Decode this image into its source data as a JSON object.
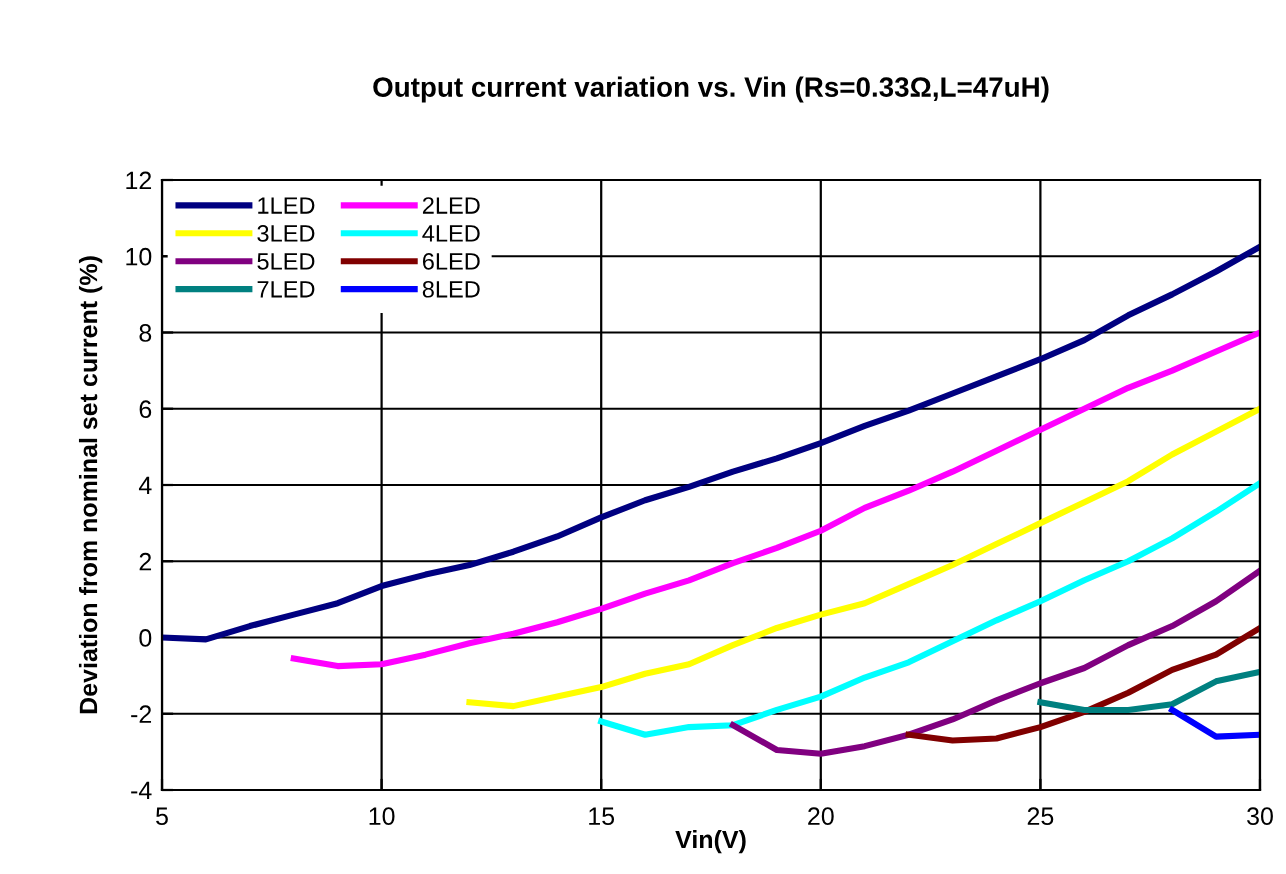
{
  "chart_data": {
    "type": "line",
    "title": "Output current variation vs. Vin (Rs=0.33Ω,L=47uH)",
    "xlabel": "Vin(V)",
    "ylabel": "Deviation from nominal set current (%)",
    "xlim": [
      5,
      30
    ],
    "xticks": [
      5,
      10,
      15,
      20,
      25,
      30
    ],
    "ylim": [
      -4,
      12
    ],
    "yticks": [
      -4,
      -2,
      0,
      2,
      4,
      6,
      8,
      10,
      12
    ],
    "grid": true,
    "legend": "top left",
    "marker": "none",
    "line_style": "solid",
    "series": [
      {
        "name": "1LED",
        "color": "#000080",
        "x": [
          5,
          6,
          7,
          8,
          9,
          10,
          11,
          12,
          13,
          14,
          15,
          16,
          17,
          18,
          19,
          20,
          21,
          22,
          23,
          24,
          25,
          26,
          27,
          28,
          29,
          30
        ],
        "values": [
          0,
          -0.05,
          0.3,
          0.6,
          0.9,
          1.35,
          1.65,
          1.9,
          2.25,
          2.65,
          3.15,
          3.6,
          3.95,
          4.35,
          4.7,
          5.1,
          5.55,
          5.95,
          6.4,
          6.85,
          7.3,
          7.8,
          8.45,
          9.0,
          9.6,
          10.25
        ]
      },
      {
        "name": "2LED",
        "color": "#ff00ff",
        "x": [
          8,
          9,
          10,
          11,
          12,
          13,
          14,
          15,
          16,
          17,
          18,
          19,
          20,
          21,
          22,
          23,
          24,
          25,
          26,
          27,
          28,
          29,
          30
        ],
        "values": [
          -0.55,
          -0.75,
          -0.7,
          -0.45,
          -0.15,
          0.1,
          0.4,
          0.75,
          1.15,
          1.5,
          1.95,
          2.35,
          2.8,
          3.4,
          3.85,
          4.35,
          4.9,
          5.45,
          6.0,
          6.55,
          7.0,
          7.5,
          8.0
        ]
      },
      {
        "name": "3LED",
        "color": "#ffff00",
        "x": [
          12,
          13,
          14,
          15,
          16,
          17,
          18,
          19,
          20,
          21,
          22,
          23,
          24,
          25,
          26,
          27,
          28,
          29,
          30
        ],
        "values": [
          -1.7,
          -1.8,
          -1.55,
          -1.3,
          -0.95,
          -0.7,
          -0.2,
          0.25,
          0.6,
          0.9,
          1.4,
          1.9,
          2.45,
          3.0,
          3.55,
          4.1,
          4.8,
          5.4,
          6.0
        ]
      },
      {
        "name": "4LED",
        "color": "#00ffff",
        "x": [
          15,
          16,
          17,
          18,
          19,
          20,
          21,
          22,
          23,
          24,
          25,
          26,
          27,
          28,
          29,
          30
        ],
        "values": [
          -2.2,
          -2.55,
          -2.35,
          -2.3,
          -1.9,
          -1.55,
          -1.05,
          -0.65,
          -0.1,
          0.45,
          0.95,
          1.5,
          2.0,
          2.6,
          3.3,
          4.05
        ]
      },
      {
        "name": "5LED",
        "color": "#800080",
        "x": [
          18,
          19,
          20,
          21,
          22,
          23,
          24,
          25,
          26,
          27,
          28,
          29,
          30
        ],
        "values": [
          -2.3,
          -2.95,
          -3.05,
          -2.85,
          -2.55,
          -2.15,
          -1.65,
          -1.2,
          -0.8,
          -0.2,
          0.3,
          0.95,
          1.75
        ]
      },
      {
        "name": "6LED",
        "color": "#800000",
        "x": [
          22,
          23,
          24,
          25,
          26,
          27,
          28,
          29,
          30
        ],
        "values": [
          -2.55,
          -2.7,
          -2.65,
          -2.35,
          -1.95,
          -1.45,
          -0.85,
          -0.45,
          0.25
        ]
      },
      {
        "name": "7LED",
        "color": "#008080",
        "x": [
          25,
          26,
          27,
          28,
          29,
          30
        ],
        "values": [
          -1.7,
          -1.9,
          -1.9,
          -1.75,
          -1.15,
          -0.9
        ]
      },
      {
        "name": "8LED",
        "color": "#0000ff",
        "x": [
          28,
          29,
          30
        ],
        "values": [
          -1.9,
          -2.6,
          -2.55
        ]
      }
    ]
  }
}
